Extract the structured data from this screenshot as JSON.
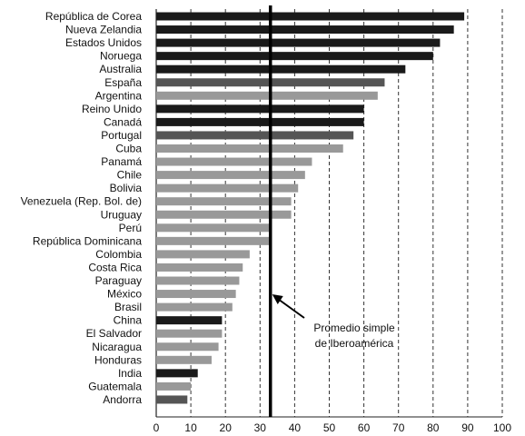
{
  "chart_data": {
    "type": "bar",
    "orientation": "horizontal",
    "categories": [
      "República de Corea",
      "Nueva Zelandia",
      "Estados Unidos",
      "Noruega",
      "Australia",
      "España",
      "Argentina",
      "Reino Unido",
      "Canadá",
      "Portugal",
      "Cuba",
      "Panamá",
      "Chile",
      "Bolivia",
      "Venezuela (Rep. Bol. de)",
      "Uruguay",
      "Perú",
      "República Dominicana",
      "Colombia",
      "Costa Rica",
      "Paraguay",
      "México",
      "Brasil",
      "China",
      "El Salvador",
      "Nicaragua",
      "Honduras",
      "India",
      "Guatemala",
      "Andorra"
    ],
    "values": [
      89,
      86,
      82,
      80,
      72,
      66,
      64,
      60,
      60,
      57,
      54,
      45,
      43,
      41,
      39,
      39,
      33,
      33,
      27,
      25,
      24,
      23,
      22,
      19,
      19,
      18,
      16,
      12,
      10,
      9
    ],
    "bar_colors": [
      "#1a1a1a",
      "#1a1a1a",
      "#1a1a1a",
      "#1a1a1a",
      "#1a1a1a",
      "#555555",
      "#999999",
      "#1a1a1a",
      "#1a1a1a",
      "#555555",
      "#999999",
      "#999999",
      "#999999",
      "#999999",
      "#999999",
      "#999999",
      "#999999",
      "#999999",
      "#999999",
      "#999999",
      "#999999",
      "#999999",
      "#999999",
      "#1a1a1a",
      "#999999",
      "#999999",
      "#999999",
      "#1a1a1a",
      "#999999",
      "#555555"
    ],
    "xlim": [
      0,
      100
    ],
    "xticks": [
      0,
      10,
      20,
      30,
      40,
      50,
      60,
      70,
      80,
      90,
      100
    ],
    "grid": "vertical-dashed",
    "reference_line": {
      "value": 33,
      "label_lines": [
        "Promedio simple",
        "de Iberoamérica"
      ]
    }
  }
}
